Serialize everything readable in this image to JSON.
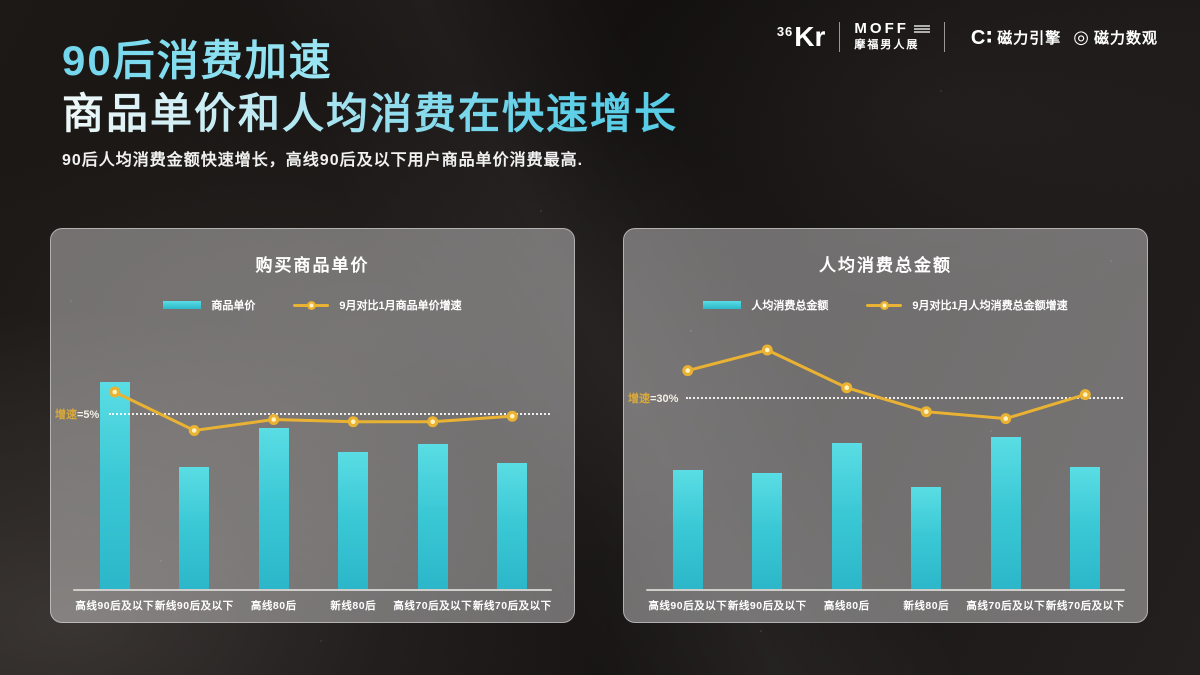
{
  "slide": {
    "title_line1": "90后消费加速",
    "title_line2": "商品单价和人均消费在快速增长",
    "subtitle": "90后人均消费金额快速增长，高线90后及以下用户商品单价消费最高."
  },
  "logos": {
    "kr_small": "36",
    "kr_big": "Kr",
    "moff_name": "MOFF",
    "moff_sub": "摩福男人展",
    "engine_icon": "C∶",
    "engine_text": "磁力引擎",
    "dataview_icon": "◎",
    "dataview_text": "磁力数观"
  },
  "colors": {
    "title_cyan": "#6fd4e8",
    "bar_gradient_top": "#5adde4",
    "bar_gradient_bottom": "#2bb7c9",
    "line_yellow": "#eab232",
    "marker_center": "#fff3c2",
    "threshold_gold": "#d9a93c",
    "panel_gray": "rgba(255,255,255,0.38)"
  },
  "chart_data": [
    {
      "type": "bar+line",
      "title": "购买商品单价",
      "legend_bar": "商品单价",
      "legend_line": "9月对比1月商品单价增速",
      "legend_position": "top-center",
      "grid": false,
      "categories": [
        "高线90后及以下",
        "新线90后及以下",
        "高线80后",
        "新线80后",
        "高线70后及以下",
        "新线70后及以下"
      ],
      "bar_series": {
        "name": "商品单价",
        "values_relative": [
          100,
          59,
          78,
          66,
          70,
          61
        ]
      },
      "line_series": {
        "name": "9月对比1月商品单价增速",
        "values_pct": [
          7.0,
          3.5,
          4.5,
          4.3,
          4.3,
          4.8
        ]
      },
      "threshold": {
        "label": "增速",
        "value_text": "=5%",
        "pct": 5
      }
    },
    {
      "type": "bar+line",
      "title": "人均消费总金额",
      "legend_bar": "人均消费总金额",
      "legend_line": "9月对比1月人均消费总金额增速",
      "legend_position": "top-center",
      "grid": false,
      "categories": [
        "高线90后及以下",
        "新线90后及以下",
        "高线80后",
        "新线80后",
        "高线70后及以下",
        "新线70后及以下"
      ],
      "bar_series": {
        "name": "人均消费总金额",
        "values_relative": [
          78,
          76,
          96,
          67,
          100,
          80
        ]
      },
      "line_series": {
        "name": "9月对比1月人均消费总金额增速",
        "values_pct": [
          38,
          44,
          33,
          26,
          24,
          31
        ]
      },
      "threshold": {
        "label": "增速",
        "value_text": "=30%",
        "pct": 30
      }
    }
  ]
}
